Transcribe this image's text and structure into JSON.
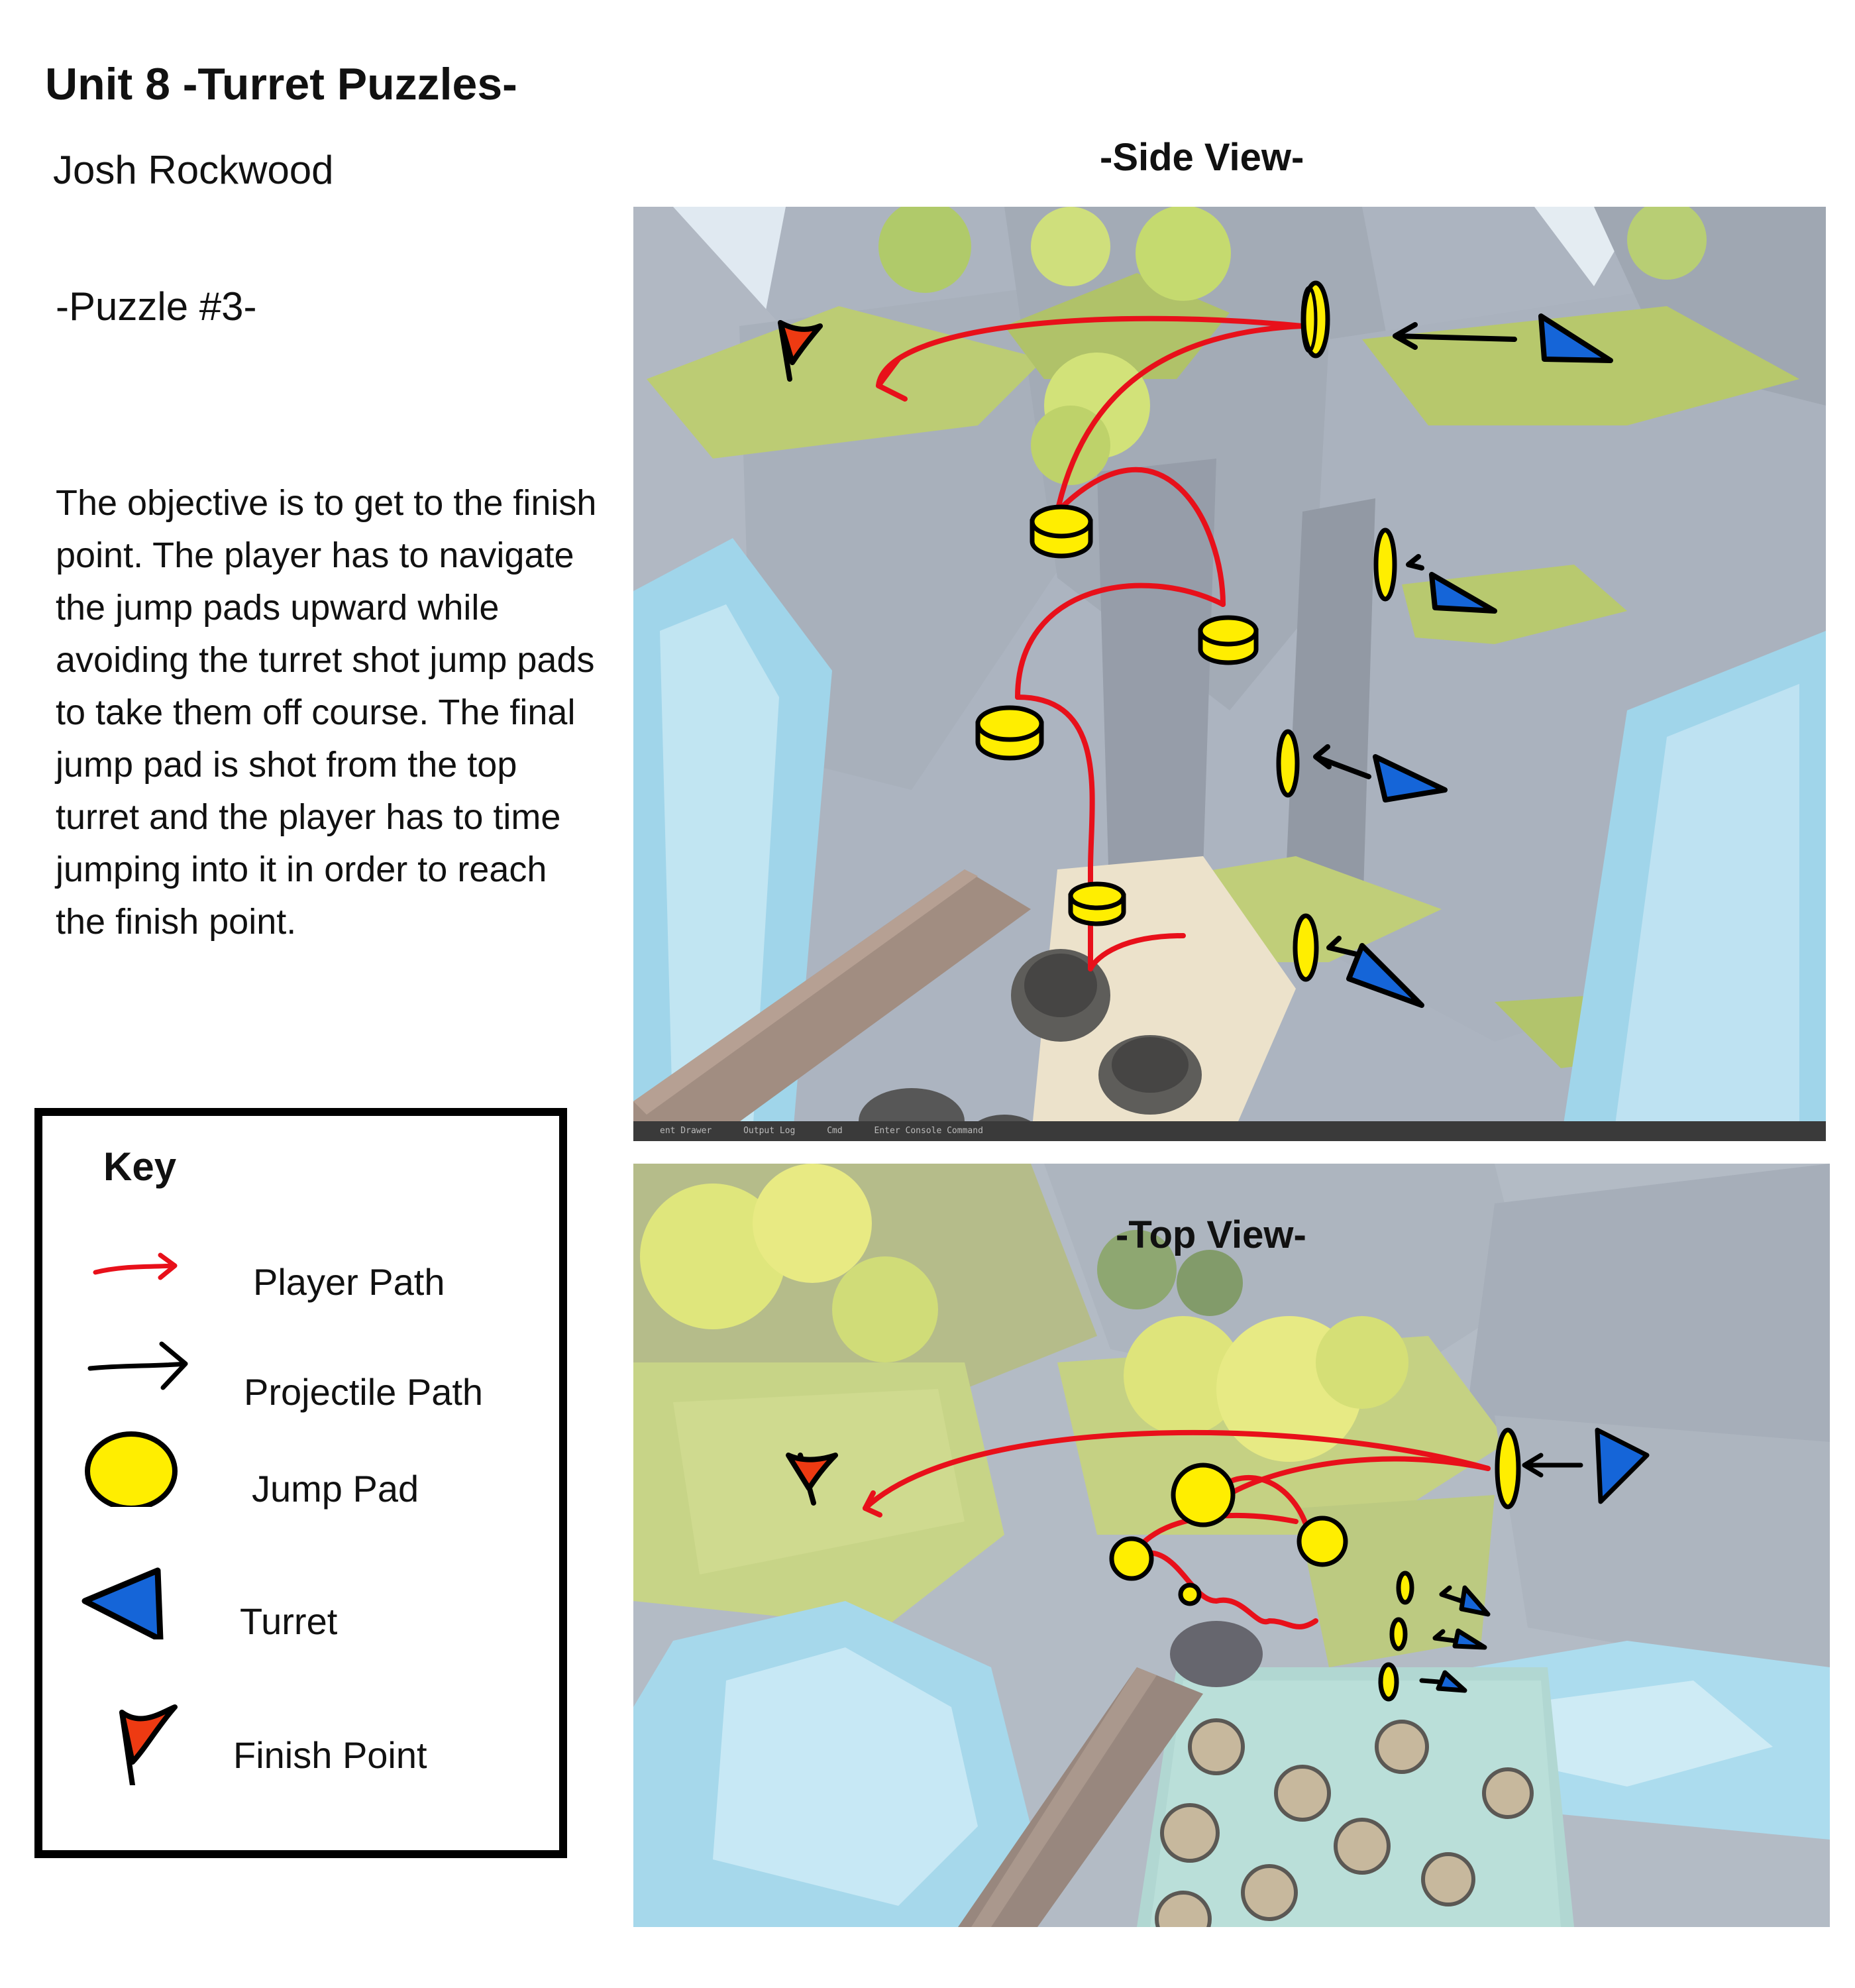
{
  "header": {
    "title": "Unit 8 -Turret Puzzles-",
    "author": "Josh Rockwood",
    "puzzle": "-Puzzle #3-"
  },
  "description": "The objective is to get to the finish point. The player has to navigate the jump pads upward while avoiding the turret shot jump pads to take them off course. The final jump pad is shot from the top turret and the player has to time jumping into it in order to reach the finish point.",
  "views": {
    "side": "-Side View-",
    "top": "-Top View-"
  },
  "editor_bar": {
    "content_drawer": "ent Drawer",
    "output_log": "Output Log",
    "cmd": "Cmd",
    "console_placeholder": "Enter Console Command"
  },
  "key": {
    "title": "Key",
    "items": [
      {
        "label": "Player Path",
        "icon": "player-path-arrow-icon",
        "color": "#e8101a"
      },
      {
        "label": "Projectile Path",
        "icon": "projectile-path-arrow-icon",
        "color": "#000000"
      },
      {
        "label": "Jump Pad",
        "icon": "jump-pad-icon",
        "color": "#ffee00"
      },
      {
        "label": "Turret",
        "icon": "turret-icon",
        "color": "#1565d8"
      },
      {
        "label": "Finish Point",
        "icon": "finish-flag-icon",
        "color": "#ee3a12"
      }
    ]
  },
  "colors": {
    "player_path": "#e8101a",
    "projectile_path": "#000000",
    "jump_pad": "#ffee00",
    "turret": "#1565d8",
    "finish_point": "#ee3a12",
    "rock": "#8d97a5",
    "grass": "#a6bc4a",
    "water": "#8fd0ea"
  }
}
